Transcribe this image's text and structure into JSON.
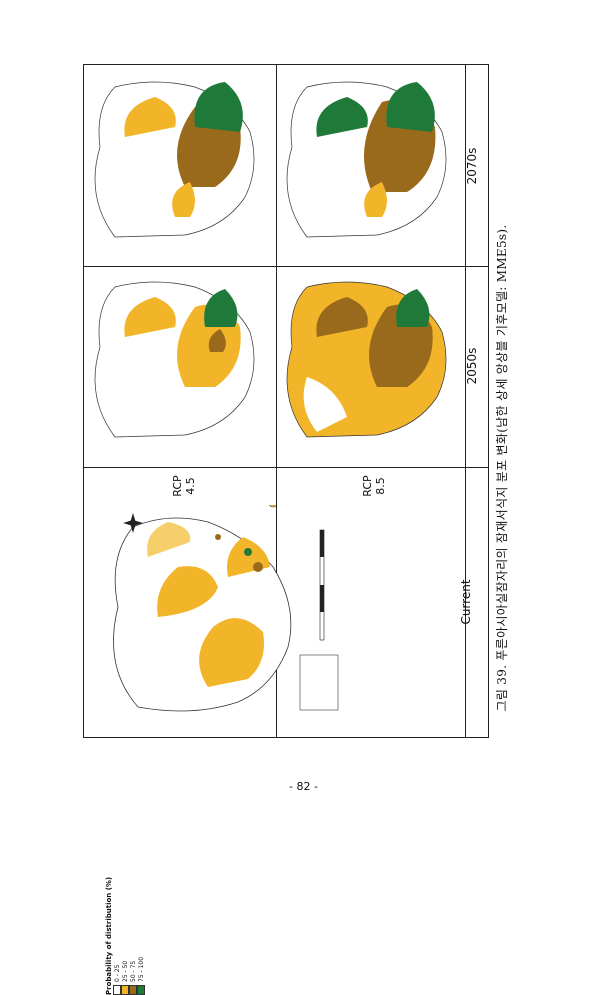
{
  "table": {
    "header_current": "Current",
    "header_2050": "2050s",
    "header_2070": "2070s",
    "rcp45_label": "RCP",
    "rcp45_value": "4.5",
    "rcp85_label": "RCP",
    "rcp85_value": "8.5"
  },
  "legend": {
    "title": "Probability of distribution (%)",
    "ranges": [
      "0 - 25",
      "25 - 50",
      "50 - 75",
      "75 - 100"
    ],
    "colors": [
      "#ffffff",
      "#f2b52a",
      "#9a6a1c",
      "#1f7a3a"
    ]
  },
  "caption": "그림 39. 푸른아시아실잠자리의 잠재서식지 분포 변화(남한 상세 앙상블 기후모델: MME5s).",
  "page_number": "- 82 -"
}
